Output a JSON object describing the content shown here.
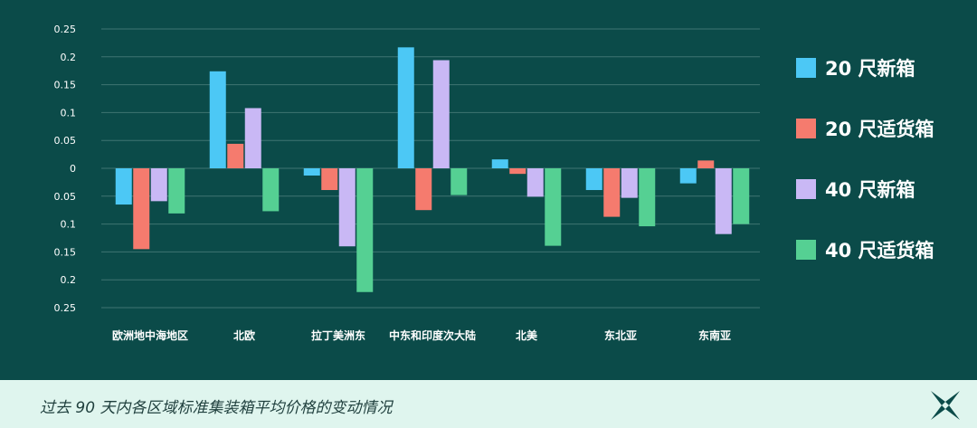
{
  "chart_data": {
    "type": "bar",
    "categories": [
      "欧洲地中海地区",
      "北欧",
      "拉丁美洲东",
      "中东和印度次大陆",
      "北美",
      "东北亚",
      "东南亚"
    ],
    "series": [
      {
        "name": "20 尺新箱",
        "color": "#4cc8f5",
        "values": [
          -0.065,
          0.174,
          -0.013,
          0.217,
          0.016,
          -0.039,
          -0.027
        ]
      },
      {
        "name": "20 尺适货箱",
        "color": "#f57b6e",
        "values": [
          -0.145,
          0.044,
          -0.039,
          -0.075,
          -0.01,
          -0.087,
          0.014
        ]
      },
      {
        "name": "40 尺新箱",
        "color": "#c9b8f5",
        "values": [
          -0.059,
          0.108,
          -0.14,
          0.194,
          -0.051,
          -0.053,
          -0.118
        ]
      },
      {
        "name": "40 尺适货箱",
        "color": "#55d093",
        "values": [
          -0.081,
          -0.077,
          -0.222,
          -0.048,
          -0.139,
          -0.104,
          -0.1
        ]
      }
    ],
    "yticks": [
      "0.25",
      "0.2",
      "0.15",
      "0.1",
      "0.05",
      "0",
      "0.05",
      "0.1",
      "0.15",
      "0.2",
      "0.25"
    ],
    "ylim": [
      -0.25,
      0.25
    ],
    "grid": true,
    "legend_position": "right"
  },
  "footer": {
    "caption": "过去 90 天内各区域标准集装箱平均价格的变动情况",
    "logo_icon": "star-logo-icon"
  }
}
